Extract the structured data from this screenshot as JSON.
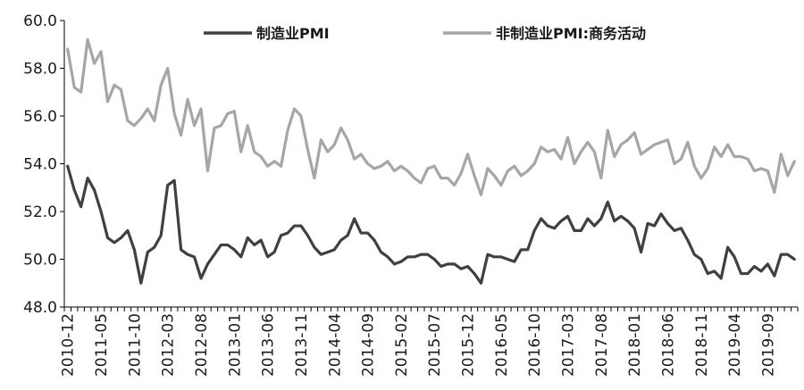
{
  "chart_data": {
    "type": "line",
    "title": "",
    "xlabel": "",
    "ylabel": "",
    "ylim": [
      48.0,
      60.0
    ],
    "y_ticks": [
      "48.0",
      "50.0",
      "52.0",
      "54.0",
      "56.0",
      "58.0",
      "60.0"
    ],
    "grid": false,
    "legend_position": "top",
    "x": [
      "2010-12",
      "2011-01",
      "2011-02",
      "2011-03",
      "2011-04",
      "2011-05",
      "2011-06",
      "2011-07",
      "2011-08",
      "2011-09",
      "2011-10",
      "2011-11",
      "2011-12",
      "2012-01",
      "2012-02",
      "2012-03",
      "2012-04",
      "2012-05",
      "2012-06",
      "2012-07",
      "2012-08",
      "2012-09",
      "2012-10",
      "2012-11",
      "2012-12",
      "2013-01",
      "2013-02",
      "2013-03",
      "2013-04",
      "2013-05",
      "2013-06",
      "2013-07",
      "2013-08",
      "2013-09",
      "2013-10",
      "2013-11",
      "2013-12",
      "2014-01",
      "2014-02",
      "2014-03",
      "2014-04",
      "2014-05",
      "2014-06",
      "2014-07",
      "2014-08",
      "2014-09",
      "2014-10",
      "2014-11",
      "2014-12",
      "2015-01",
      "2015-02",
      "2015-03",
      "2015-04",
      "2015-05",
      "2015-06",
      "2015-07",
      "2015-08",
      "2015-09",
      "2015-10",
      "2015-11",
      "2015-12",
      "2016-01",
      "2016-02",
      "2016-03",
      "2016-04",
      "2016-05",
      "2016-06",
      "2016-07",
      "2016-08",
      "2016-09",
      "2016-10",
      "2016-11",
      "2016-12",
      "2017-01",
      "2017-02",
      "2017-03",
      "2017-04",
      "2017-05",
      "2017-06",
      "2017-07",
      "2017-08",
      "2017-09",
      "2017-10",
      "2017-11",
      "2017-12",
      "2018-01",
      "2018-02",
      "2018-03",
      "2018-04",
      "2018-05",
      "2018-06",
      "2018-07",
      "2018-08",
      "2018-09",
      "2018-10",
      "2018-11",
      "2018-12",
      "2019-01",
      "2019-02",
      "2019-03",
      "2019-04",
      "2019-05",
      "2019-06",
      "2019-07",
      "2019-08",
      "2019-09",
      "2019-10",
      "2019-11",
      "2019-12",
      "2020-01"
    ],
    "x_tick_labels": [
      "2010-12",
      "2011-05",
      "2011-10",
      "2012-03",
      "2012-08",
      "2013-01",
      "2013-06",
      "2013-11",
      "2014-04",
      "2014-09",
      "2015-02",
      "2015-07",
      "2015-12",
      "2016-05",
      "2016-10",
      "2017-03",
      "2017-08",
      "2018-01",
      "2018-06",
      "2018-11",
      "2019-04",
      "2019-09"
    ],
    "series": [
      {
        "name": "制造业PMI",
        "color": "#404040",
        "values": [
          53.9,
          52.9,
          52.2,
          53.4,
          52.9,
          52.0,
          50.9,
          50.7,
          50.9,
          51.2,
          50.4,
          49.0,
          50.3,
          50.5,
          51.0,
          53.1,
          53.3,
          50.4,
          50.2,
          50.1,
          49.2,
          49.8,
          50.2,
          50.6,
          50.6,
          50.4,
          50.1,
          50.9,
          50.6,
          50.8,
          50.1,
          50.3,
          51.0,
          51.1,
          51.4,
          51.4,
          51.0,
          50.5,
          50.2,
          50.3,
          50.4,
          50.8,
          51.0,
          51.7,
          51.1,
          51.1,
          50.8,
          50.3,
          50.1,
          49.8,
          49.9,
          50.1,
          50.1,
          50.2,
          50.2,
          50.0,
          49.7,
          49.8,
          49.8,
          49.6,
          49.7,
          49.4,
          49.0,
          50.2,
          50.1,
          50.1,
          50.0,
          49.9,
          50.4,
          50.4,
          51.2,
          51.7,
          51.4,
          51.3,
          51.6,
          51.8,
          51.2,
          51.2,
          51.7,
          51.4,
          51.7,
          52.4,
          51.6,
          51.8,
          51.6,
          51.3,
          50.3,
          51.5,
          51.4,
          51.9,
          51.5,
          51.2,
          51.3,
          50.8,
          50.2,
          50.0,
          49.4,
          49.5,
          49.2,
          50.5,
          50.1,
          49.4,
          49.4,
          49.7,
          49.5,
          49.8,
          49.3,
          50.2,
          50.2,
          50.0
        ]
      },
      {
        "name": "非制造业PMI:商务活动",
        "color": "#a6a6a6",
        "values": [
          58.8,
          57.2,
          57.0,
          59.2,
          58.2,
          58.7,
          56.6,
          57.3,
          57.1,
          55.8,
          55.6,
          55.9,
          56.3,
          55.8,
          57.3,
          58.0,
          56.1,
          55.2,
          56.7,
          55.6,
          56.3,
          53.7,
          55.5,
          55.6,
          56.1,
          56.2,
          54.5,
          55.6,
          54.5,
          54.3,
          53.9,
          54.1,
          53.9,
          55.4,
          56.3,
          56.0,
          54.6,
          53.4,
          55.0,
          54.5,
          54.8,
          55.5,
          55.0,
          54.2,
          54.4,
          54.0,
          53.8,
          53.9,
          54.1,
          53.7,
          53.9,
          53.7,
          53.4,
          53.2,
          53.8,
          53.9,
          53.4,
          53.4,
          53.1,
          53.6,
          54.4,
          53.5,
          52.7,
          53.8,
          53.5,
          53.1,
          53.7,
          53.9,
          53.5,
          53.7,
          54.0,
          54.7,
          54.5,
          54.6,
          54.2,
          55.1,
          54.0,
          54.5,
          54.9,
          54.5,
          53.4,
          55.4,
          54.3,
          54.8,
          55.0,
          55.3,
          54.4,
          54.6,
          54.8,
          54.9,
          55.0,
          54.0,
          54.2,
          54.9,
          53.9,
          53.4,
          53.8,
          54.7,
          54.3,
          54.8,
          54.3,
          54.3,
          54.2,
          53.7,
          53.8,
          53.7,
          52.8,
          54.4,
          53.5,
          54.1
        ]
      }
    ]
  }
}
